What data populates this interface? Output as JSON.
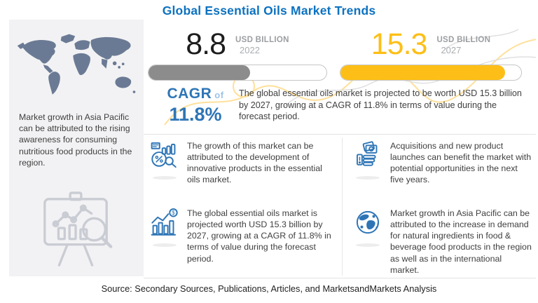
{
  "title": "Global Essential Oils Market Trends",
  "chart_data": {
    "type": "bar",
    "categories": [
      "2022",
      "2027"
    ],
    "values": [
      8.8,
      15.3
    ],
    "title": "Global Essential Oils Market Trends",
    "unit": "USD Billion",
    "cagr_pct": 11.8,
    "bar_colors": [
      "#8C8C8C",
      "#FDBF17"
    ],
    "bar_fill_pct": [
      57,
      91
    ]
  },
  "stats": {
    "current": {
      "value": "8.8",
      "unit": "USD BILLION",
      "year": "2022",
      "fill_pct": 57,
      "color": "#8C8C8C"
    },
    "forecast": {
      "value": "15.3",
      "unit": "USD BILLION",
      "year": "2027",
      "fill_pct": 91,
      "color": "#FDBF17"
    }
  },
  "cagr": {
    "label": "CAGR",
    "of": "of",
    "value": "11.8%"
  },
  "summary": "The global essential oils market is projected to be worth USD 15.3 billion by 2027, growing at a CAGR of 11.8% in terms of value during the forecast period.",
  "left_panel": {
    "map_icon": "world-map",
    "note": "Market growth in Asia Pacific can be attributed to the rising awareness for consuming nutritious food products in the region.",
    "illustration_icon": "presentation-chart-magnifier"
  },
  "insights": [
    {
      "icon": "pie-percent-analytics-icon",
      "text": "The growth of this market can be attributed to the development of innovative products in the essential oils market."
    },
    {
      "icon": "banknote-hand-icon",
      "text": "Acquisitions and new product launches can benefit the market with potential opportunities in the next five years."
    },
    {
      "icon": "bar-growth-dollar-icon",
      "text": "The global essential oils market is projected worth USD 15.3 billion by 2027, growing at a CAGR of 11.8% in terms of value during the forecast period."
    },
    {
      "icon": "globe-icon",
      "text": "Market growth in Asia Pacific can be attributed to the increase in demand for natural ingredients in food & beverage food products in the region as well as in the international market."
    }
  ],
  "source": "Source: Secondary Sources, Publications, Articles, and MarketsandMarkets Analysis",
  "colors": {
    "title_blue": "#0D72C0",
    "cagr_blue": "#2E75B6",
    "cagr_light_blue": "#9DC3E6",
    "accent_yellow": "#FDBF17",
    "bar_gray": "#8C8C8C",
    "panel_bg": "#F2F2F4",
    "map_slate": "#6B7A94",
    "icon_blue": "#2E75B6",
    "body_text": "#3F3F3F"
  }
}
